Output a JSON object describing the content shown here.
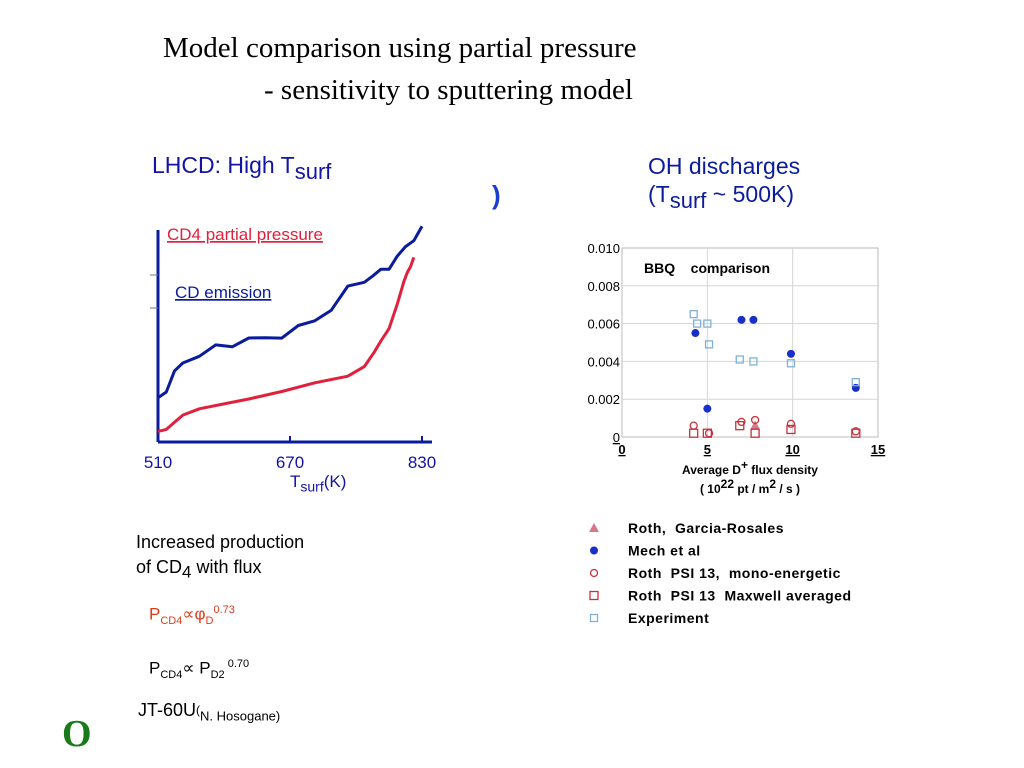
{
  "title": {
    "line1": "Model comparison using partial pressure",
    "line2": "- sensitivity to sputtering model"
  },
  "left_panel": {
    "heading_main": "LHCD:  High T",
    "heading_sub": "surf",
    "stray_glyph": ")",
    "xlabel_main": "T",
    "xlabel_sub": "surf",
    "xlabel_unit": "(K)",
    "caption_line1": "Increased production",
    "caption_line2_main": "of CD",
    "caption_line2_sub": "4",
    "caption_line2_rest": " with flux",
    "formula1": {
      "p": "P",
      "sub1": "CD4",
      "prop": "∝",
      "phi": "φ",
      "sub2": "D",
      "sup": "0.73"
    },
    "formula2": {
      "p": "P",
      "sub1": "CD4",
      "prop": "∝ ",
      "p2": "P",
      "sub2": "D2",
      "sup": " 0.70"
    },
    "source_main": "JT-60U",
    "source_paren": "(",
    "source_credit": "N. Hosogane)"
  },
  "right_panel": {
    "heading_line1": "OH discharges",
    "heading_line2_a": "(T",
    "heading_line2_sub": "surf",
    "heading_line2_b": " ~ 500K)"
  },
  "corner_mark": "O",
  "colors": {
    "navy": "#0a1c9c",
    "red": "#e0203c",
    "experiment": "#7fb2d6",
    "roth": "#c8323c",
    "roth_garcia": "#d4788a",
    "mech": "#1a2fc8",
    "title_green": "#1a7a1a"
  },
  "chart_data": [
    {
      "type": "line",
      "x": [
        510,
        670,
        830
      ],
      "xticks": [
        "510",
        "670",
        "830"
      ],
      "xlim": [
        510,
        830
      ],
      "xlabel": "Tsurf(K)",
      "ylabel": "",
      "series": [
        {
          "name": "CD4 partial pressure",
          "color": "#e0203c",
          "x": [
            510,
            520,
            540,
            560,
            590,
            620,
            660,
            700,
            740,
            760,
            772,
            780,
            790,
            800,
            808,
            812,
            816,
            820
          ],
          "y": [
            0.06,
            0.08,
            0.15,
            0.18,
            0.22,
            0.25,
            0.28,
            0.33,
            0.38,
            0.43,
            0.5,
            0.57,
            0.65,
            0.78,
            0.9,
            0.96,
            1.0,
            1.04
          ]
        },
        {
          "name": "CD emission",
          "color": "#0a1c9c",
          "x": [
            510,
            520,
            530,
            540,
            560,
            580,
            600,
            620,
            640,
            660,
            680,
            700,
            720,
            740,
            760,
            770,
            780,
            790,
            800,
            810,
            820,
            830
          ],
          "y": [
            0.25,
            0.3,
            0.38,
            0.46,
            0.49,
            0.53,
            0.56,
            0.58,
            0.58,
            0.61,
            0.64,
            0.69,
            0.76,
            0.86,
            0.92,
            0.94,
            0.96,
            1.0,
            1.04,
            1.1,
            1.16,
            1.2
          ]
        }
      ]
    },
    {
      "type": "scatter",
      "title": "BBQ    comparison",
      "xlabel": "Average D+ flux density ( 1022 pt / m2 / s )",
      "xlabel_line1": "Average D",
      "xlabel_line1_sup": "+",
      "xlabel_line1_rest": " flux density",
      "xlabel_line2_a": "( 10",
      "xlabel_line2_sup1": "22",
      "xlabel_line2_b": " pt / m",
      "xlabel_line2_sup2": "2",
      "xlabel_line2_c": " / s )",
      "xlim": [
        0,
        15
      ],
      "ylim": [
        0,
        0.01
      ],
      "xticks": [
        "0",
        "5",
        "10",
        "15"
      ],
      "yticks": [
        "0",
        "0.002",
        "0.004",
        "0.006",
        "0.008",
        "0.010"
      ],
      "legend": "below",
      "series": [
        {
          "name": "Roth,  Garcia-Rosales",
          "marker": "triangle",
          "color": "#d4788a",
          "points": [
            [
              7.8,
              0.0006
            ]
          ]
        },
        {
          "name": "Mech et al",
          "marker": "dot",
          "color": "#1a2fc8",
          "points": [
            [
              4.3,
              0.0055
            ],
            [
              5.0,
              0.0015
            ],
            [
              7.0,
              0.0062
            ],
            [
              7.7,
              0.0062
            ],
            [
              9.9,
              0.0044
            ],
            [
              13.7,
              0.0026
            ]
          ]
        },
        {
          "name": "Roth  PSI 13,  mono-energetic",
          "marker": "circle",
          "color": "#c8323c",
          "points": [
            [
              4.2,
              0.0006
            ],
            [
              5.1,
              0.0002
            ],
            [
              7.0,
              0.0008
            ],
            [
              7.8,
              0.0009
            ],
            [
              9.9,
              0.0007
            ],
            [
              13.7,
              0.0003
            ]
          ]
        },
        {
          "name": "Roth  PSI 13  Maxwell averaged",
          "marker": "square",
          "color": "#c8323c",
          "points": [
            [
              4.2,
              0.0002
            ],
            [
              5.0,
              0.0002
            ],
            [
              6.9,
              0.0006
            ],
            [
              7.8,
              0.0002
            ],
            [
              9.9,
              0.0004
            ],
            [
              13.7,
              0.0002
            ]
          ]
        },
        {
          "name": "Experiment",
          "marker": "square-small",
          "color": "#7fb2d6",
          "points": [
            [
              4.2,
              0.0065
            ],
            [
              4.4,
              0.006
            ],
            [
              5.0,
              0.006
            ],
            [
              5.1,
              0.0049
            ],
            [
              6.9,
              0.0041
            ],
            [
              7.7,
              0.004
            ],
            [
              9.9,
              0.0039
            ],
            [
              13.7,
              0.0029
            ]
          ]
        }
      ]
    }
  ]
}
